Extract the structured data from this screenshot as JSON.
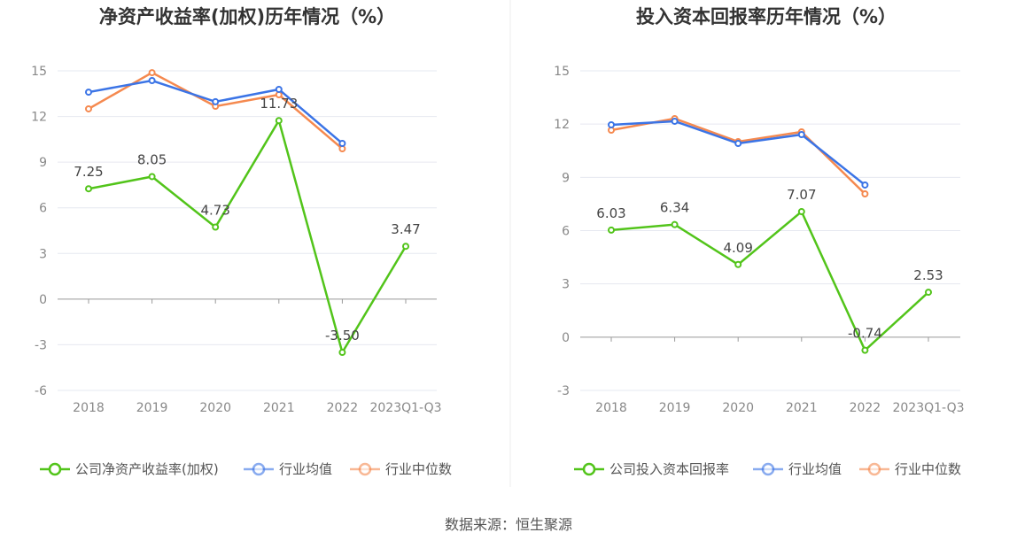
{
  "source": "数据来源：恒生聚源",
  "chart_data": [
    {
      "type": "line",
      "title": "净资产收益率(加权)历年情况（%）",
      "categories": [
        "2018",
        "2019",
        "2020",
        "2021",
        "2022",
        "2023Q1-Q3"
      ],
      "ylim": [
        -6,
        15
      ],
      "yticks": [
        -6,
        -3,
        0,
        3,
        6,
        9,
        12,
        15
      ],
      "legend_position": "bottom",
      "series": [
        {
          "name": "公司净资产收益率(加权)",
          "color": "#52c41a",
          "values": [
            7.25,
            8.05,
            4.73,
            11.73,
            -3.5,
            3.47
          ],
          "labels": [
            "7.25",
            "8.05",
            "4.73",
            "11.73",
            "-3.50",
            "3.47"
          ]
        },
        {
          "name": "行业均值",
          "color": "#3b74e6",
          "values": [
            13.6,
            14.36,
            12.97,
            13.78,
            10.23,
            null
          ]
        },
        {
          "name": "行业中位数",
          "color": "#f5894f",
          "values": [
            12.5,
            14.88,
            12.67,
            13.43,
            9.88,
            null
          ]
        }
      ]
    },
    {
      "type": "line",
      "title": "投入资本回报率历年情况（%）",
      "categories": [
        "2018",
        "2019",
        "2020",
        "2021",
        "2022",
        "2023Q1-Q3"
      ],
      "ylim": [
        -3,
        15
      ],
      "yticks": [
        -3,
        0,
        3,
        6,
        9,
        12,
        15
      ],
      "legend_position": "bottom",
      "series": [
        {
          "name": "公司投入资本回报率",
          "color": "#52c41a",
          "values": [
            6.03,
            6.34,
            4.09,
            7.07,
            -0.74,
            2.53
          ],
          "labels": [
            "6.03",
            "6.34",
            "4.09",
            "7.07",
            "-0.74",
            "2.53"
          ]
        },
        {
          "name": "行业均值",
          "color": "#3b74e6",
          "values": [
            11.96,
            12.16,
            10.91,
            11.41,
            8.57,
            null
          ]
        },
        {
          "name": "行业中位数",
          "color": "#f5894f",
          "values": [
            11.66,
            12.31,
            11.01,
            11.56,
            8.07,
            null
          ]
        }
      ]
    }
  ]
}
